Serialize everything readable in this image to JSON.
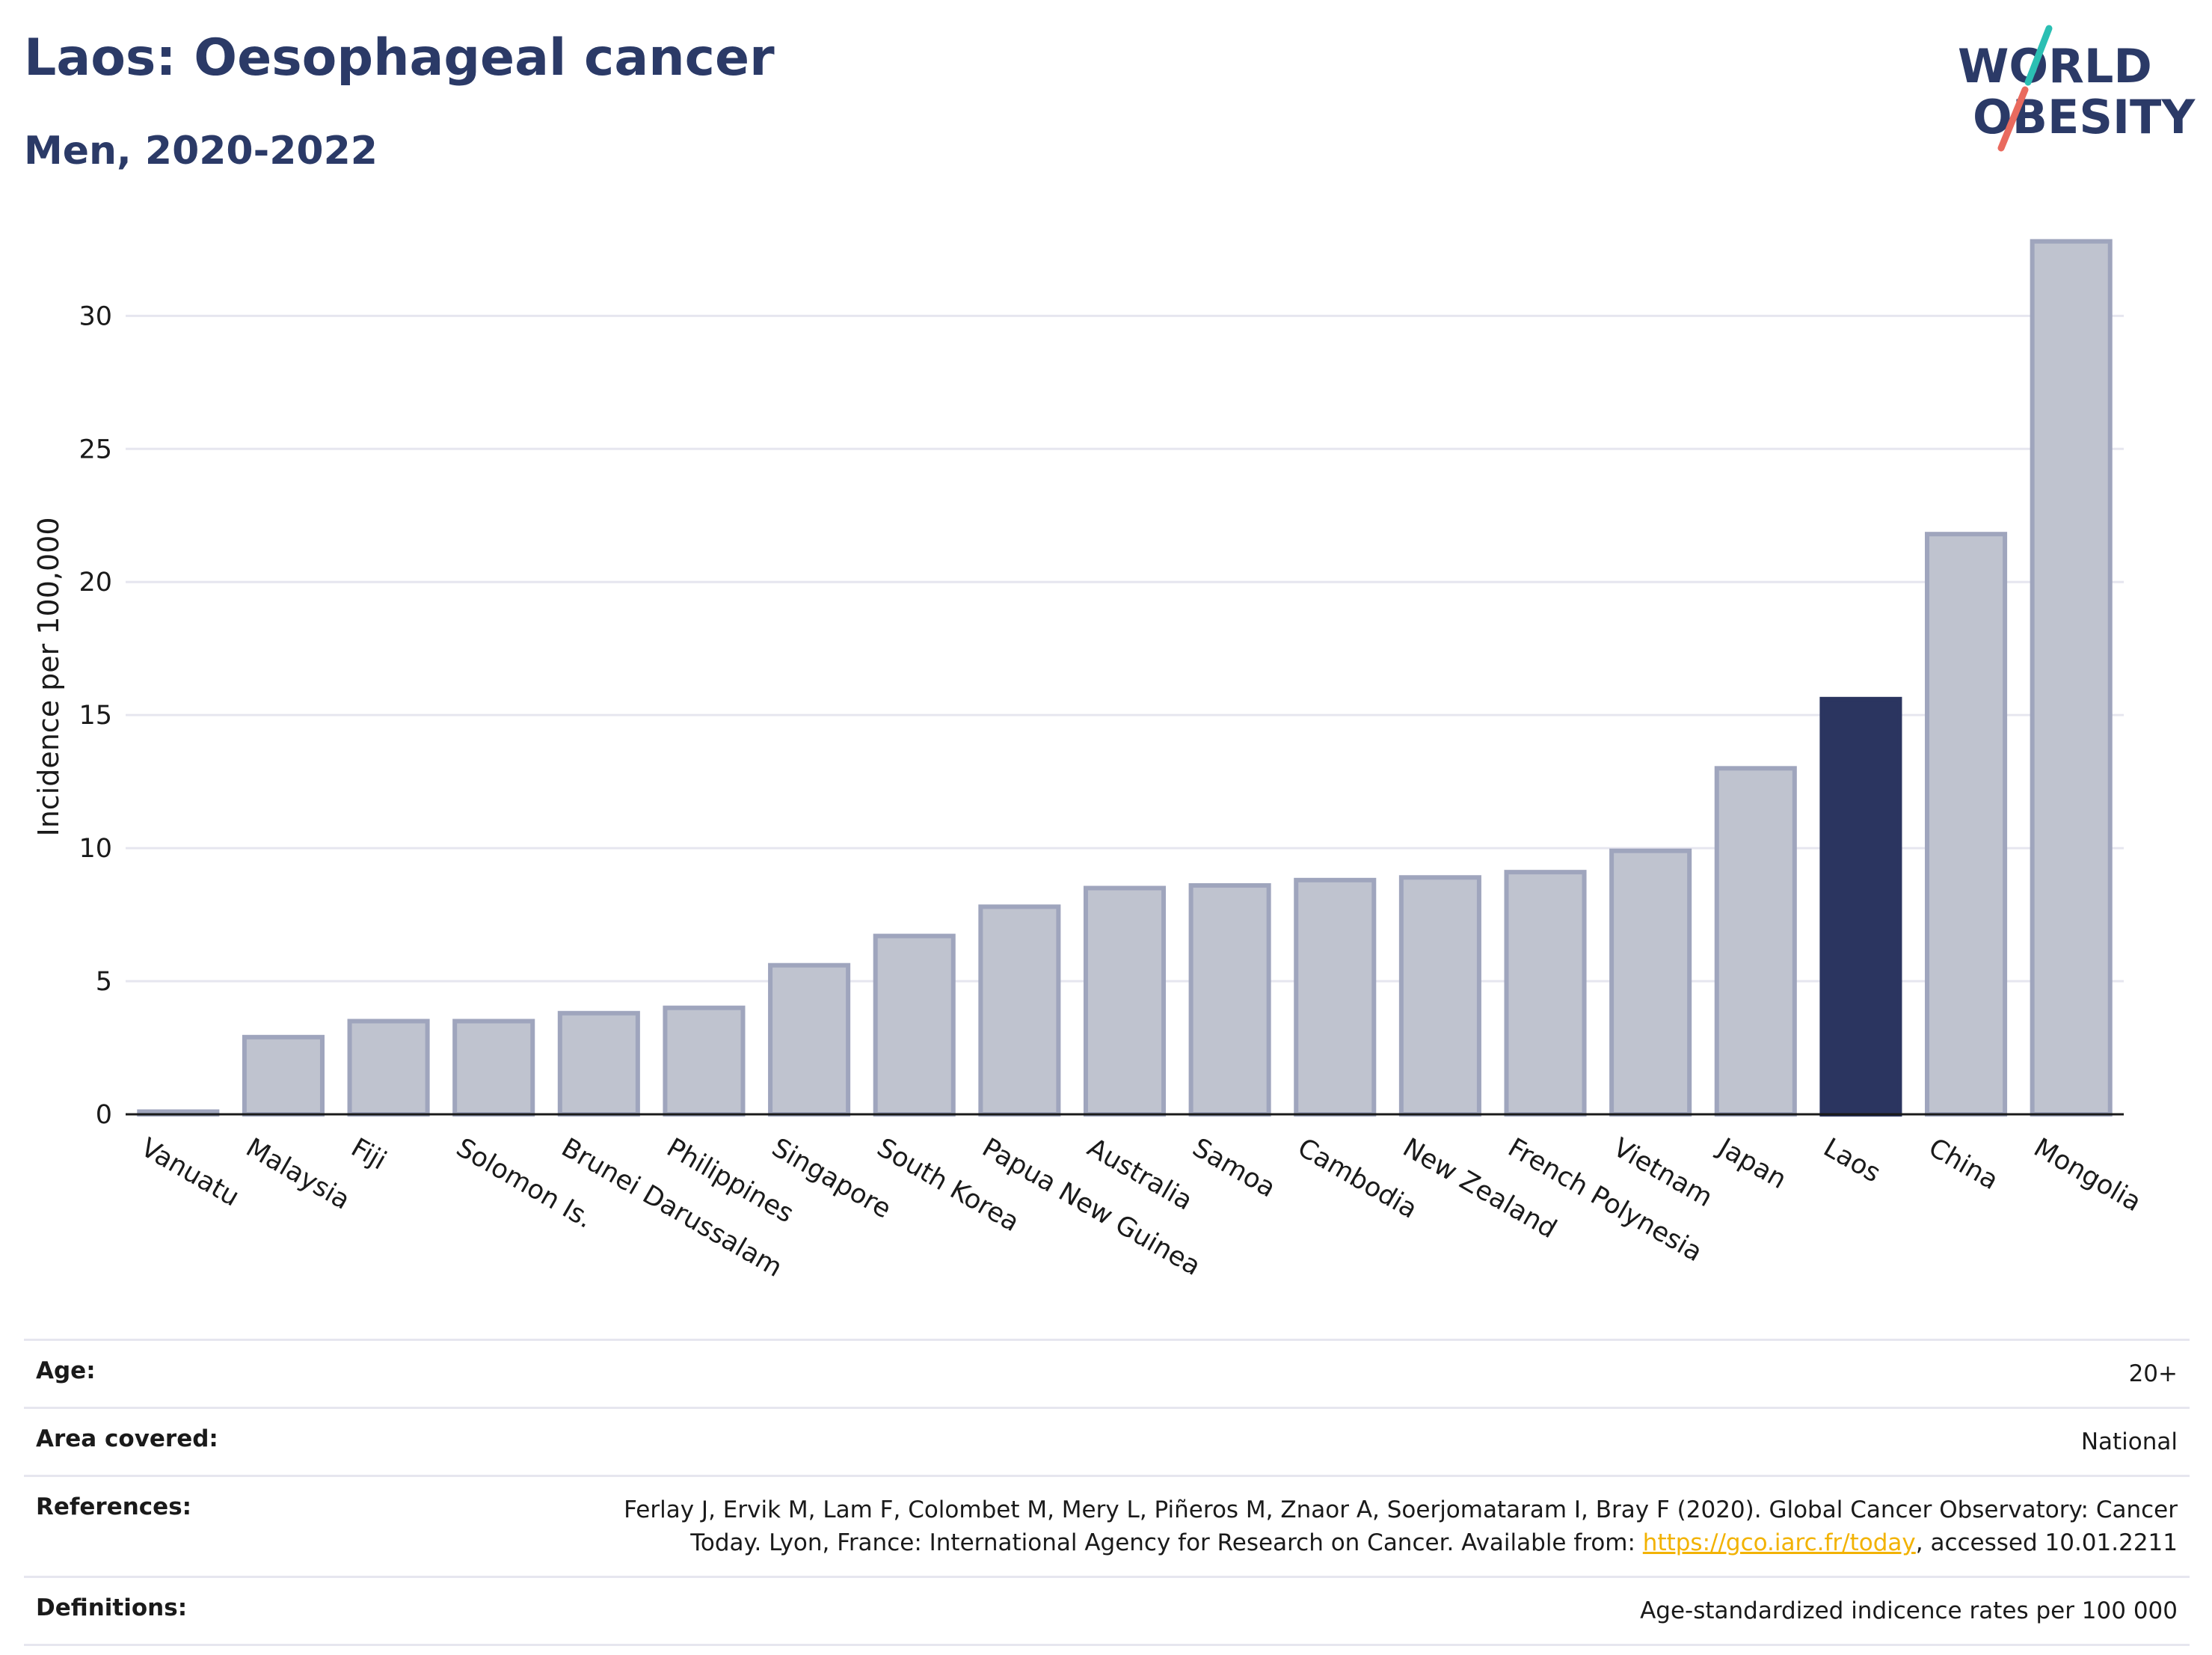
{
  "header": {
    "title": "Laos: Oesophageal cancer",
    "subtitle": "Men, 2020-2022"
  },
  "logo": {
    "line1": "WORLD",
    "line2": "OBESITY",
    "text_color": "#2b3a67",
    "slash_colors": [
      "#2bbfb3",
      "#e96a5e"
    ]
  },
  "colors": {
    "bar_default": "#bfc3cf",
    "bar_default_stroke": "#9fa5bd",
    "bar_highlight": "#2b3560",
    "title": "#2b3a67",
    "gridline": "#e6e6ef",
    "link": "#f2b200"
  },
  "chart_data": {
    "type": "bar",
    "categories": [
      "Vanuatu",
      "Malaysia",
      "Fiji",
      "Solomon Is.",
      "Brunei Darussalam",
      "Philippines",
      "Singapore",
      "South Korea",
      "Papua New Guinea",
      "Australia",
      "Samoa",
      "Cambodia",
      "New Zealand",
      "French Polynesia",
      "Vietnam",
      "Japan",
      "Laos",
      "China",
      "Mongolia"
    ],
    "values": [
      0.1,
      2.9,
      3.5,
      3.5,
      3.8,
      4.0,
      5.6,
      6.7,
      7.8,
      8.5,
      8.6,
      8.8,
      8.9,
      9.1,
      9.9,
      13.0,
      15.6,
      21.8,
      32.8
    ],
    "highlight": "Laos",
    "ylabel": "Incidence per 100,000",
    "xlabel": "",
    "ylim": [
      0,
      34
    ],
    "yticks": [
      0,
      5,
      10,
      15,
      20,
      25,
      30
    ],
    "grid": true,
    "legend": "none"
  },
  "info": {
    "age": {
      "label": "Age:",
      "value": "20+"
    },
    "area": {
      "label": "Area covered:",
      "value": "National"
    },
    "references": {
      "label": "References:",
      "text_before": "Ferlay J, Ervik M, Lam F, Colombet M, Mery L, Piñeros M, Znaor A, Soerjomataram I, Bray F (2020). Global Cancer Observatory: Cancer Today. Lyon, France: International Agency for Research on Cancer. Available from: ",
      "link": "https://gco.iarc.fr/today",
      "text_after": ", accessed 10.01.2211"
    },
    "definitions": {
      "label": "Definitions:",
      "value": "Age-standardized indicence rates per 100 000"
    }
  }
}
